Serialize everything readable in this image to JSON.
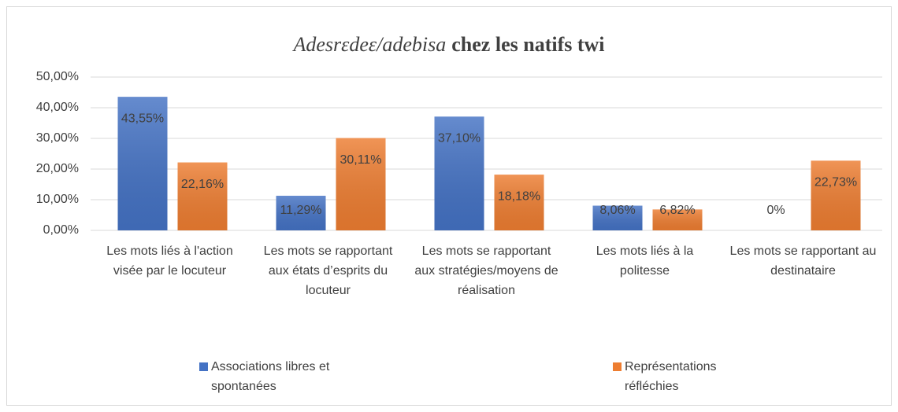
{
  "chart_data": {
    "type": "bar",
    "title": [
      "Adesrɛdeɛ/adebisa",
      "chez les natifs twi"
    ],
    "categories": [
      "Les mots liés à l'action visée par le locuteur",
      "Les mots se rapportant aux états d’esprits du locuteur",
      "Les mots se rapportant aux stratégies/moyens de réalisation",
      "Les mots liés à la politesse",
      "Les mots se rapportant au destinataire"
    ],
    "series": [
      {
        "name": "Associations libres et spontanées",
        "color": "#4472c4",
        "values": [
          43.55,
          11.29,
          37.1,
          8.06,
          0
        ],
        "value_labels": [
          "43,55%",
          "11,29%",
          "37,10%",
          "8,06%",
          "0%"
        ]
      },
      {
        "name": "Représentations réfléchies",
        "color": "#ed7d31",
        "values": [
          22.16,
          30.11,
          18.18,
          6.82,
          22.73
        ],
        "value_labels": [
          "22,16%",
          "30,11%",
          "18,18%",
          "6,82%",
          "22,73%"
        ]
      }
    ],
    "ylim": [
      0,
      50
    ],
    "yticks": [
      {
        "value": 0,
        "label": "0,00%"
      },
      {
        "value": 10,
        "label": "10,00%"
      },
      {
        "value": 20,
        "label": "20,00%"
      },
      {
        "value": 30,
        "label": "30,00%"
      },
      {
        "value": 40,
        "label": "40,00%"
      },
      {
        "value": 50,
        "label": "50,00%"
      }
    ],
    "grid": true,
    "legend": "bottom"
  }
}
